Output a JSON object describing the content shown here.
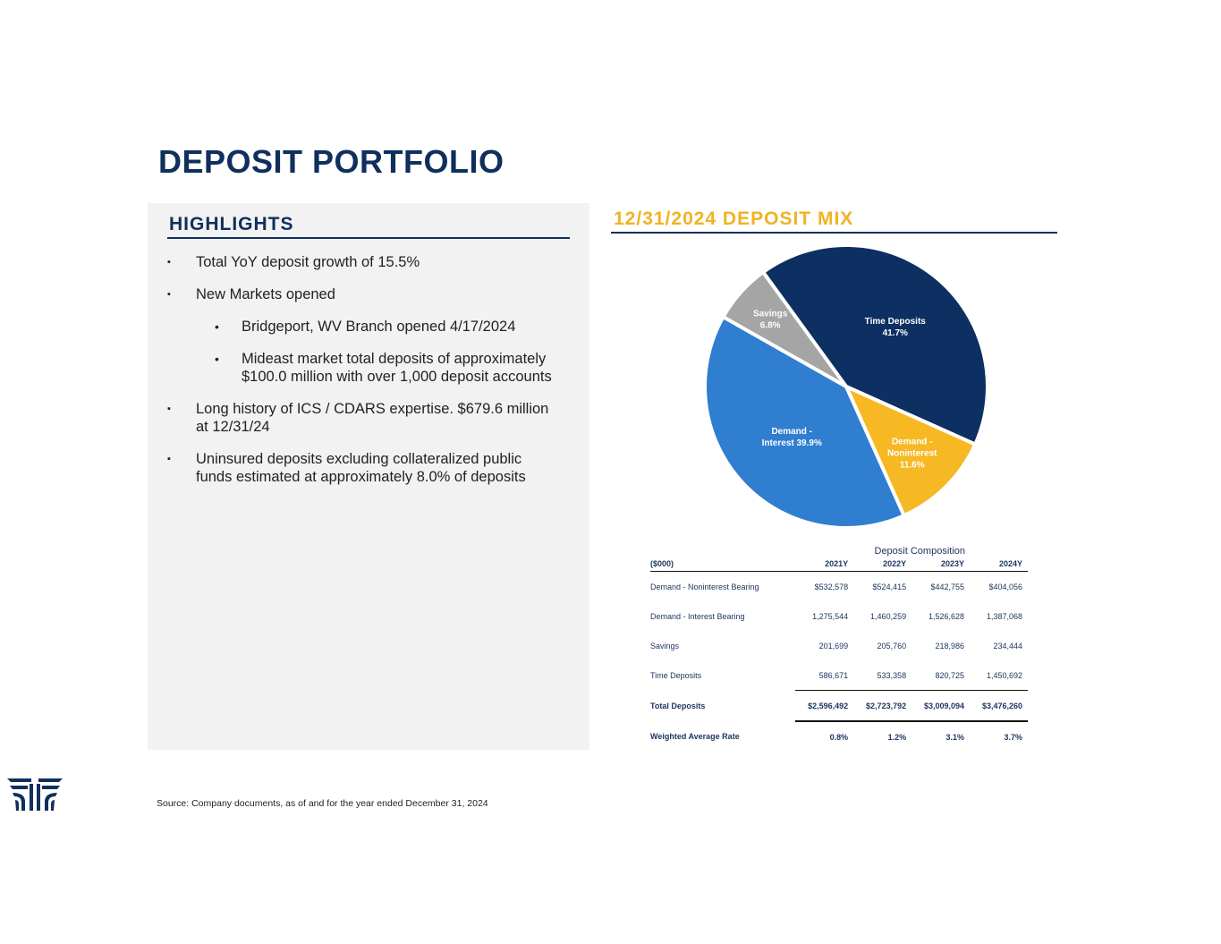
{
  "title": "DEPOSIT PORTFOLIO",
  "highlights": {
    "heading": "HIGHLIGHTS",
    "items": [
      {
        "text": "Total YoY deposit growth of 15.5%",
        "level": 1
      },
      {
        "text": "New Markets opened",
        "level": 1
      },
      {
        "text": "Bridgeport, WV Branch opened 4/17/2024",
        "level": 2
      },
      {
        "text": "Mideast market total deposits of approximately $100.0 million with over 1,000 deposit accounts",
        "level": 2
      },
      {
        "text": "Long history of ICS / CDARS expertise. $679.6 million at 12/31/24",
        "level": 1
      },
      {
        "text": "Uninsured deposits excluding collateralized public funds estimated at approximately 8.0% of deposits",
        "level": 1
      }
    ]
  },
  "chart_data": {
    "type": "pie",
    "title": "12/31/2024 DEPOSIT MIX",
    "slices": [
      {
        "label1": "Time Deposits",
        "label2": "41.7%",
        "value": 41.7,
        "color": "#0d2f62",
        "text": "#ffffff"
      },
      {
        "label1": "Demand -",
        "label2": "Noninterest",
        "label3": "11.6%",
        "value": 11.6,
        "color": "#f6b924",
        "text": "#ffffff"
      },
      {
        "label1": "Demand -",
        "label2": "Interest 39.9%",
        "value": 39.9,
        "color": "#2f7ecf",
        "text": "#ffffff"
      },
      {
        "label1": "Savings",
        "label2": "6.8%",
        "value": 6.8,
        "color": "#a5a5a5",
        "text": "#ffffff"
      }
    ]
  },
  "table": {
    "caption": "Deposit Composition",
    "headers": [
      "($000)",
      "2021Y",
      "2022Y",
      "2023Y",
      "2024Y"
    ],
    "rows": [
      [
        "Demand - Noninterest Bearing",
        "$532,578",
        "$524,415",
        "$442,755",
        "$404,056"
      ],
      [
        "Demand - Interest Bearing",
        "1,275,544",
        "1,460,259",
        "1,526,628",
        "1,387,068"
      ],
      [
        "Savings",
        "201,699",
        "205,760",
        "218,986",
        "234,444"
      ],
      [
        "Time Deposits",
        "586,671",
        "533,358",
        "820,725",
        "1,450,692"
      ],
      [
        "Total Deposits",
        "$2,596,492",
        "$2,723,792",
        "$3,009,094",
        "$3,476,260"
      ],
      [
        "Weighted Average Rate",
        "0.8%",
        "1.2%",
        "3.1%",
        "3.7%"
      ]
    ]
  },
  "source": "Source: Company documents, as of and for the year ended December 31, 2024"
}
